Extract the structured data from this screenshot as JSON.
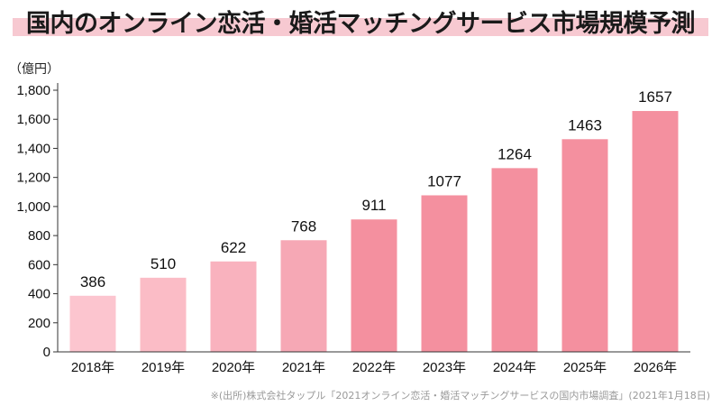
{
  "title": "国内のオンライン恋活・婚活マッチングサービス市場規模予測",
  "unit_label": "（億円）",
  "source": "※(出所)株式会社タップル「2021オンライン恋活・婚活マッチングサービスの国内市場調査」(2021年1月18日)",
  "colors": {
    "title_band": "#f7c9d1",
    "bars": [
      "#fcc5cf",
      "#fbbcc6",
      "#f9b2be",
      "#f6a8b5",
      "#f4909f",
      "#f4909f",
      "#f4909f",
      "#f4909f",
      "#f4909f"
    ]
  },
  "chart_data": {
    "type": "bar",
    "categories": [
      "2018年",
      "2019年",
      "2020年",
      "2021年",
      "2022年",
      "2023年",
      "2024年",
      "2025年",
      "2026年"
    ],
    "values": [
      386,
      510,
      622,
      768,
      911,
      1077,
      1264,
      1463,
      1657
    ],
    "ylabel": "（億円）",
    "ylim": [
      0,
      1800
    ],
    "yticks": [
      0,
      200,
      400,
      600,
      800,
      1000,
      1200,
      1400,
      1600,
      1800
    ],
    "ytick_labels": [
      "0",
      "200",
      "400",
      "600",
      "800",
      "1,000",
      "1,200",
      "1,400",
      "1,600",
      "1,800"
    ],
    "data_labels": [
      "386",
      "510",
      "622",
      "768",
      "911",
      "1077",
      "1264",
      "1463",
      "1657"
    ],
    "grid": false,
    "legend": "none"
  }
}
